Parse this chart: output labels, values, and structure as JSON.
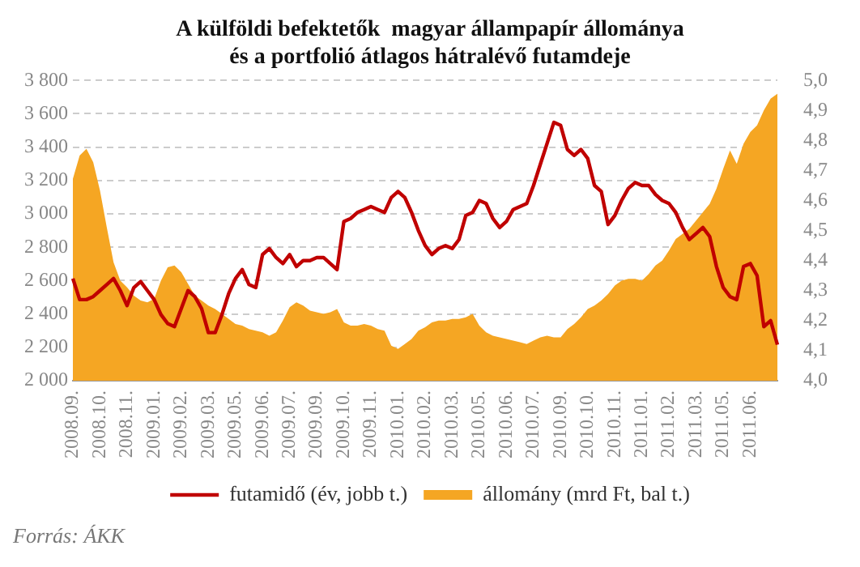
{
  "chart_data": {
    "type": "area",
    "title": "A külföldi befektetők  magyar állampapír állománya\nés a portfolió átlagos hátralévő futamdeje",
    "categories": [
      "2008.09.",
      null,
      null,
      null,
      "2008.10.",
      null,
      null,
      null,
      "2008.11.",
      null,
      null,
      null,
      "2009.01.",
      null,
      null,
      null,
      "2009.02.",
      null,
      null,
      null,
      "2009.03.",
      null,
      null,
      null,
      "2009.05.",
      null,
      null,
      null,
      "2009.06.",
      null,
      null,
      null,
      "2009.07.",
      null,
      null,
      null,
      "2009.09.",
      null,
      null,
      null,
      "2009.10.",
      null,
      null,
      null,
      "2009.11.",
      null,
      null,
      null,
      "2010.01.",
      null,
      null,
      null,
      "2010.02.",
      null,
      null,
      null,
      "2010.03.",
      null,
      null,
      null,
      "2010.05.",
      null,
      null,
      null,
      "2010.06.",
      null,
      null,
      null,
      "2010.07.",
      null,
      null,
      null,
      "2010.09.",
      null,
      null,
      null,
      "2010.10.",
      null,
      null,
      null,
      "2010.11.",
      null,
      null,
      null,
      "2011.01.",
      null,
      null,
      null,
      "2011.02.",
      null,
      null,
      null,
      "2011.03.",
      null,
      null,
      null,
      "2011.05.",
      null,
      null,
      null,
      "2011.06.",
      null,
      null,
      null,
      null
    ],
    "series": [
      {
        "name": "állomány (mrd Ft, bal t.)",
        "type": "area",
        "color": "#f5a623",
        "values": [
          3210,
          3350,
          3390,
          3310,
          3140,
          2920,
          2710,
          2600,
          2560,
          2510,
          2480,
          2470,
          2490,
          2600,
          2680,
          2690,
          2650,
          2580,
          2510,
          2480,
          2450,
          2430,
          2400,
          2370,
          2340,
          2330,
          2310,
          2300,
          2290,
          2270,
          2290,
          2360,
          2440,
          2470,
          2450,
          2420,
          2410,
          2400,
          2410,
          2430,
          2350,
          2330,
          2330,
          2340,
          2330,
          2310,
          2300,
          2210,
          2190,
          2220,
          2250,
          2300,
          2320,
          2350,
          2360,
          2360,
          2370,
          2370,
          2380,
          2400,
          2330,
          2290,
          2270,
          2260,
          2250,
          2240,
          2230,
          2220,
          2240,
          2260,
          2270,
          2260,
          2260,
          2310,
          2340,
          2380,
          2430,
          2450,
          2480,
          2520,
          2570,
          2600,
          2610,
          2610,
          2600,
          2640,
          2690,
          2720,
          2780,
          2850,
          2880,
          2910,
          2960,
          3010,
          3060,
          3150,
          3270,
          3380,
          3300,
          3420,
          3490,
          3530,
          3620,
          3690,
          3720
        ]
      },
      {
        "name": "futamidő (év, jobb t.)",
        "type": "line",
        "axis": "y2",
        "color": "#c00000",
        "values": [
          4.34,
          4.27,
          4.27,
          4.28,
          4.3,
          4.32,
          4.34,
          4.3,
          4.25,
          4.31,
          4.33,
          4.3,
          4.27,
          4.22,
          4.19,
          4.18,
          4.24,
          4.3,
          4.28,
          4.24,
          4.16,
          4.16,
          4.22,
          4.29,
          4.34,
          4.37,
          4.32,
          4.31,
          4.42,
          4.44,
          4.41,
          4.39,
          4.42,
          4.38,
          4.4,
          4.4,
          4.41,
          4.41,
          4.39,
          4.37,
          4.53,
          4.54,
          4.56,
          4.57,
          4.58,
          4.57,
          4.56,
          4.61,
          4.63,
          4.61,
          4.56,
          4.5,
          4.45,
          4.42,
          4.44,
          4.45,
          4.44,
          4.47,
          4.55,
          4.56,
          4.6,
          4.59,
          4.54,
          4.51,
          4.53,
          4.57,
          4.58,
          4.59,
          4.65,
          4.72,
          4.79,
          4.86,
          4.85,
          4.77,
          4.75,
          4.77,
          4.74,
          4.65,
          4.63,
          4.52,
          4.55,
          4.6,
          4.64,
          4.66,
          4.65,
          4.65,
          4.62,
          4.6,
          4.59,
          4.56,
          4.51,
          4.47,
          4.49,
          4.51,
          4.48,
          4.38,
          4.31,
          4.28,
          4.27,
          4.38,
          4.39,
          4.35,
          4.18,
          4.2,
          4.12
        ]
      }
    ],
    "ylim": [
      2000,
      3800
    ],
    "yticks": [
      {
        "value": 2000,
        "label": "2 000"
      },
      {
        "value": 2200,
        "label": "2 200"
      },
      {
        "value": 2400,
        "label": "2 400"
      },
      {
        "value": 2600,
        "label": "2 600"
      },
      {
        "value": 2800,
        "label": "2 800"
      },
      {
        "value": 3000,
        "label": "3 000"
      },
      {
        "value": 3200,
        "label": "3 200"
      },
      {
        "value": 3400,
        "label": "3 400"
      },
      {
        "value": 3600,
        "label": "3 600"
      },
      {
        "value": 3800,
        "label": "3 800"
      }
    ],
    "y2lim": [
      4.0,
      5.0
    ],
    "y2ticks": [
      {
        "value": 4.0,
        "label": "4,0"
      },
      {
        "value": 4.1,
        "label": "4,1"
      },
      {
        "value": 4.2,
        "label": "4,2"
      },
      {
        "value": 4.3,
        "label": "4,3"
      },
      {
        "value": 4.4,
        "label": "4,4"
      },
      {
        "value": 4.5,
        "label": "4,5"
      },
      {
        "value": 4.6,
        "label": "4,6"
      },
      {
        "value": 4.7,
        "label": "4,7"
      },
      {
        "value": 4.8,
        "label": "4,8"
      },
      {
        "value": 4.9,
        "label": "4,9"
      },
      {
        "value": 5.0,
        "label": "5,0"
      }
    ],
    "grid": "y",
    "legend": "bottom",
    "marker": "none",
    "line_style": "solid",
    "annotations": [
      "Forrás: ÁKK"
    ]
  }
}
